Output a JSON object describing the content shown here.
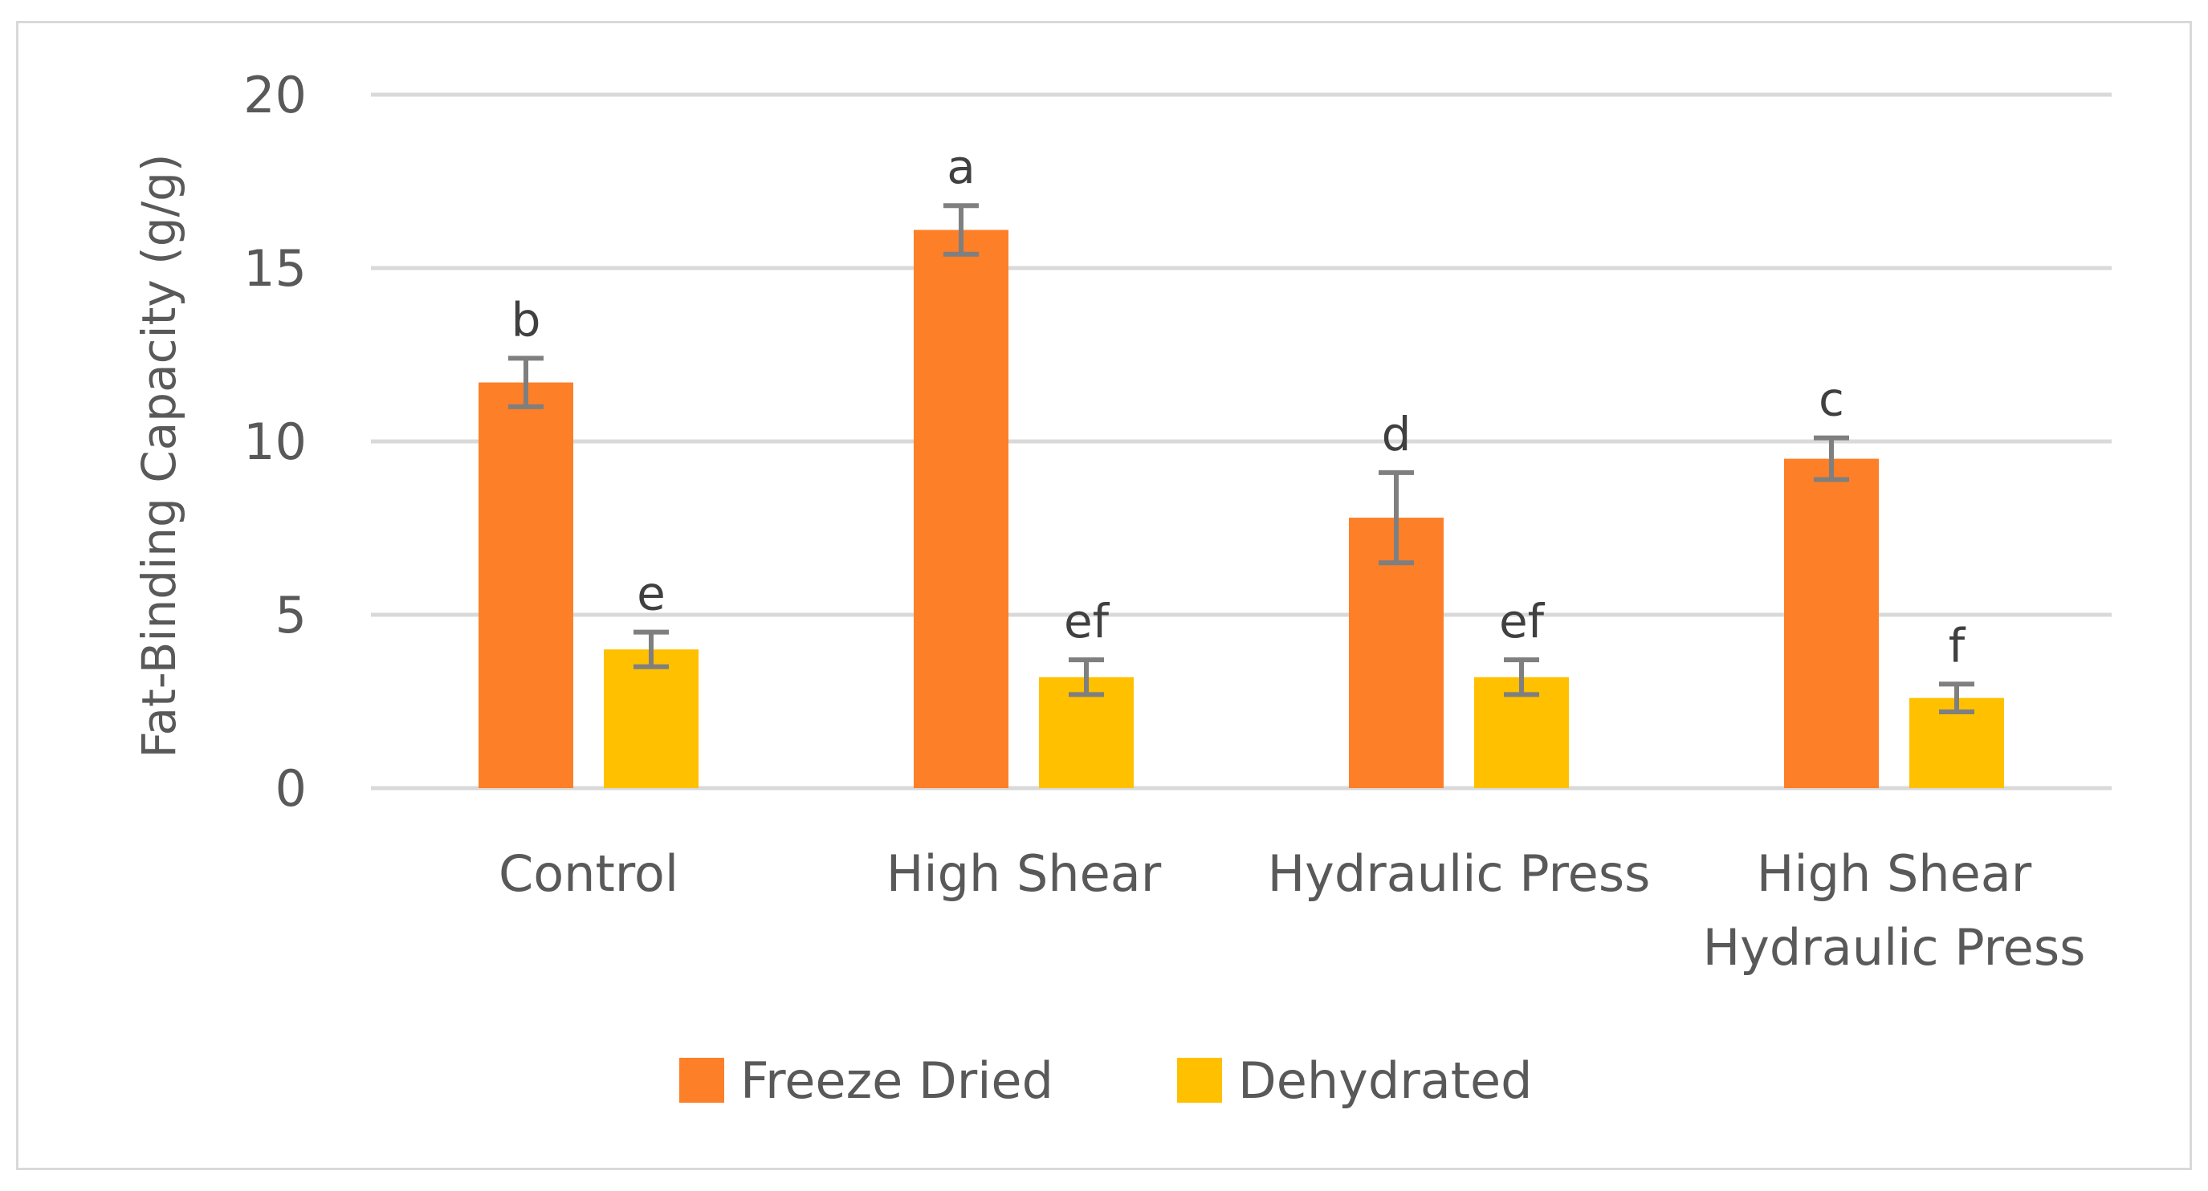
{
  "chart_data": {
    "type": "bar",
    "title": "",
    "xlabel": "",
    "ylabel": "Fat-Binding Capacity (g/g)",
    "ylim": [
      0,
      20
    ],
    "yticks": [
      0,
      5,
      10,
      15,
      20
    ],
    "grid": true,
    "legend_position": "bottom",
    "categories": [
      [
        "Control"
      ],
      [
        "High Shear"
      ],
      [
        "Hydraulic Press"
      ],
      [
        "High Shear",
        "Hydraulic Press"
      ]
    ],
    "series": [
      {
        "name": "Freeze Dried",
        "color": "#fd7f28",
        "values": [
          11.7,
          16.1,
          7.8,
          9.5
        ],
        "errors": [
          0.7,
          0.7,
          1.3,
          0.6
        ],
        "labels": [
          "b",
          "a",
          "d",
          "c"
        ]
      },
      {
        "name": "Dehydrated",
        "color": "#ffc000",
        "values": [
          4.0,
          3.2,
          3.2,
          2.6
        ],
        "errors": [
          0.5,
          0.5,
          0.5,
          0.4
        ],
        "labels": [
          "e",
          "ef",
          "ef",
          "f"
        ]
      }
    ],
    "colors": {
      "grid": "#d9d9d9",
      "error_bar": "#7f7f7f",
      "text": "#595959"
    }
  }
}
